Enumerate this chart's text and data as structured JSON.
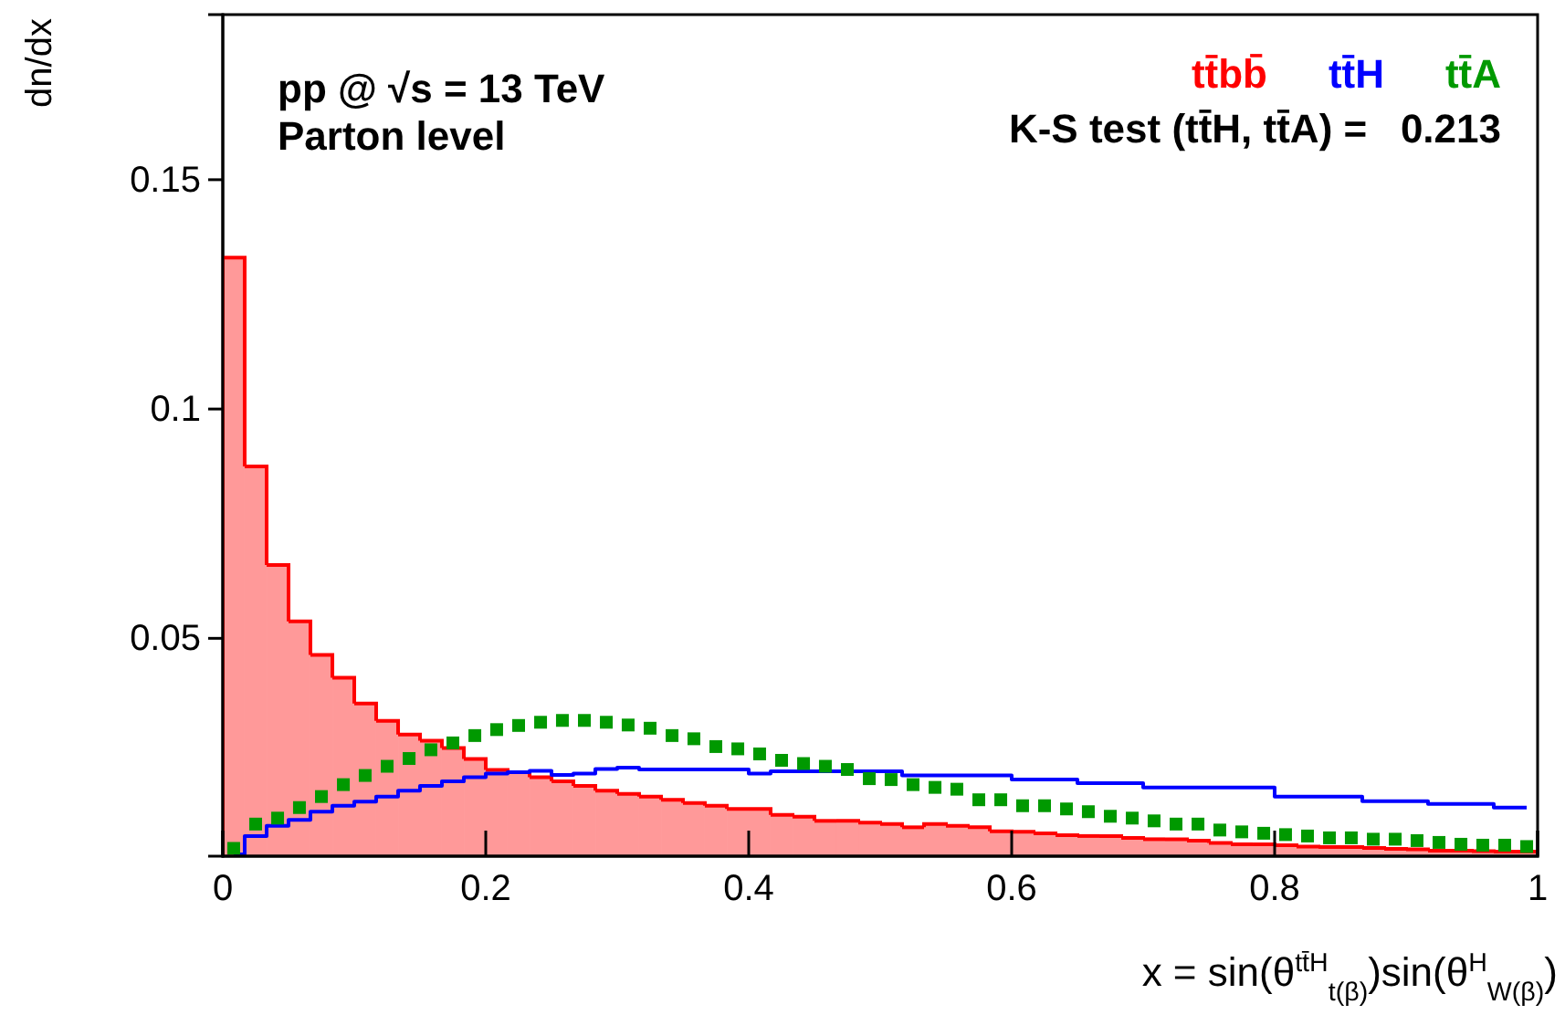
{
  "chart_data": {
    "type": "bar",
    "xlabel": "x = sin(θ$^{tt̄H}$$_{t(β)}$)sin(θ$^{H}$$_{W(β)}$)",
    "ylabel": "dn/dx",
    "annotations": [
      "pp @ √s = 13 TeV",
      "Parton level",
      "K-S test (tt̄H, tt̄A) =   0.213"
    ],
    "x": [
      0.0083,
      0.025,
      0.0417,
      0.0583,
      0.075,
      0.0917,
      0.1083,
      0.125,
      0.1417,
      0.1583,
      0.175,
      0.1917,
      0.2083,
      0.225,
      0.2417,
      0.2583,
      0.275,
      0.2917,
      0.3083,
      0.325,
      0.3417,
      0.3583,
      0.375,
      0.3917,
      0.4083,
      0.425,
      0.4417,
      0.4583,
      0.475,
      0.4917,
      0.5083,
      0.525,
      0.5417,
      0.5583,
      0.575,
      0.5917,
      0.6083,
      0.625,
      0.6417,
      0.6583,
      0.675,
      0.6917,
      0.7083,
      0.725,
      0.7417,
      0.7583,
      0.775,
      0.7917,
      0.8083,
      0.825,
      0.8417,
      0.8583,
      0.875,
      0.8917,
      0.9083,
      0.925,
      0.9417,
      0.9583,
      0.975,
      0.9917
    ],
    "series": [
      {
        "name": "tt̄bb̄",
        "color": "#ff0000",
        "values": [
          0.133,
          0.0875,
          0.066,
          0.0537,
          0.0464,
          0.0414,
          0.0358,
          0.032,
          0.029,
          0.0277,
          0.0261,
          0.0237,
          0.0213,
          0.0208,
          0.0197,
          0.0188,
          0.0178,
          0.0168,
          0.0161,
          0.0155,
          0.0148,
          0.0141,
          0.0135,
          0.0128,
          0.0128,
          0.0115,
          0.0111,
          0.0102,
          0.0102,
          0.0098,
          0.0095,
          0.0088,
          0.0095,
          0.0091,
          0.0088,
          0.0079,
          0.0078,
          0.0075,
          0.0071,
          0.0069,
          0.0069,
          0.0065,
          0.0062,
          0.0062,
          0.0059,
          0.0054,
          0.0051,
          0.0051,
          0.0049,
          0.0046,
          0.0045,
          0.0045,
          0.0043,
          0.0041,
          0.004,
          0.0037,
          0.0037,
          0.0036,
          0.0035,
          0.0035
        ]
      },
      {
        "name": "tt̄H",
        "type": "step",
        "color": "#0000ff",
        "values": [
          0.0029,
          0.0069,
          0.0091,
          0.0104,
          0.0122,
          0.0135,
          0.0144,
          0.0155,
          0.0168,
          0.0178,
          0.0188,
          0.0197,
          0.0205,
          0.0208,
          0.0211,
          0.0202,
          0.0205,
          0.0215,
          0.0218,
          0.0214,
          0.0214,
          0.0214,
          0.0214,
          0.0214,
          0.0205,
          0.021,
          0.021,
          0.021,
          0.021,
          0.021,
          0.021,
          0.0201,
          0.0201,
          0.0201,
          0.0201,
          0.0201,
          0.0192,
          0.0192,
          0.0192,
          0.0184,
          0.0184,
          0.0184,
          0.0175,
          0.0175,
          0.0175,
          0.0175,
          0.0175,
          0.0175,
          0.0155,
          0.0155,
          0.0155,
          0.0155,
          0.0145,
          0.0145,
          0.0145,
          0.0139,
          0.0139,
          0.0139,
          0.0131,
          0.0131
        ]
      },
      {
        "name": "tt̄A",
        "type": "scatter",
        "marker": "square",
        "color": "#009900",
        "values": [
          0.0042,
          0.0095,
          0.0108,
          0.0131,
          0.0155,
          0.0181,
          0.0201,
          0.0221,
          0.0238,
          0.0257,
          0.0272,
          0.0288,
          0.0301,
          0.031,
          0.0317,
          0.0321,
          0.0321,
          0.0317,
          0.0311,
          0.0304,
          0.0288,
          0.0281,
          0.0264,
          0.0259,
          0.0248,
          0.0234,
          0.0227,
          0.0221,
          0.0214,
          0.0194,
          0.0192,
          0.0181,
          0.0175,
          0.0171,
          0.0148,
          0.0148,
          0.0135,
          0.0135,
          0.0128,
          0.0122,
          0.0112,
          0.0108,
          0.0102,
          0.0095,
          0.0095,
          0.0082,
          0.0078,
          0.0075,
          0.0072,
          0.0069,
          0.0065,
          0.0065,
          0.0062,
          0.0062,
          0.0059,
          0.0055,
          0.0051,
          0.0049,
          0.0049,
          0.0046
        ]
      }
    ],
    "xlim": [
      0,
      1
    ],
    "xticks": [
      0,
      0.2,
      0.4,
      0.6,
      0.8,
      1
    ],
    "ylim": [
      0.0025,
      0.186
    ],
    "yticks": [
      0.05,
      0.1,
      0.15
    ],
    "legend": "top right"
  }
}
